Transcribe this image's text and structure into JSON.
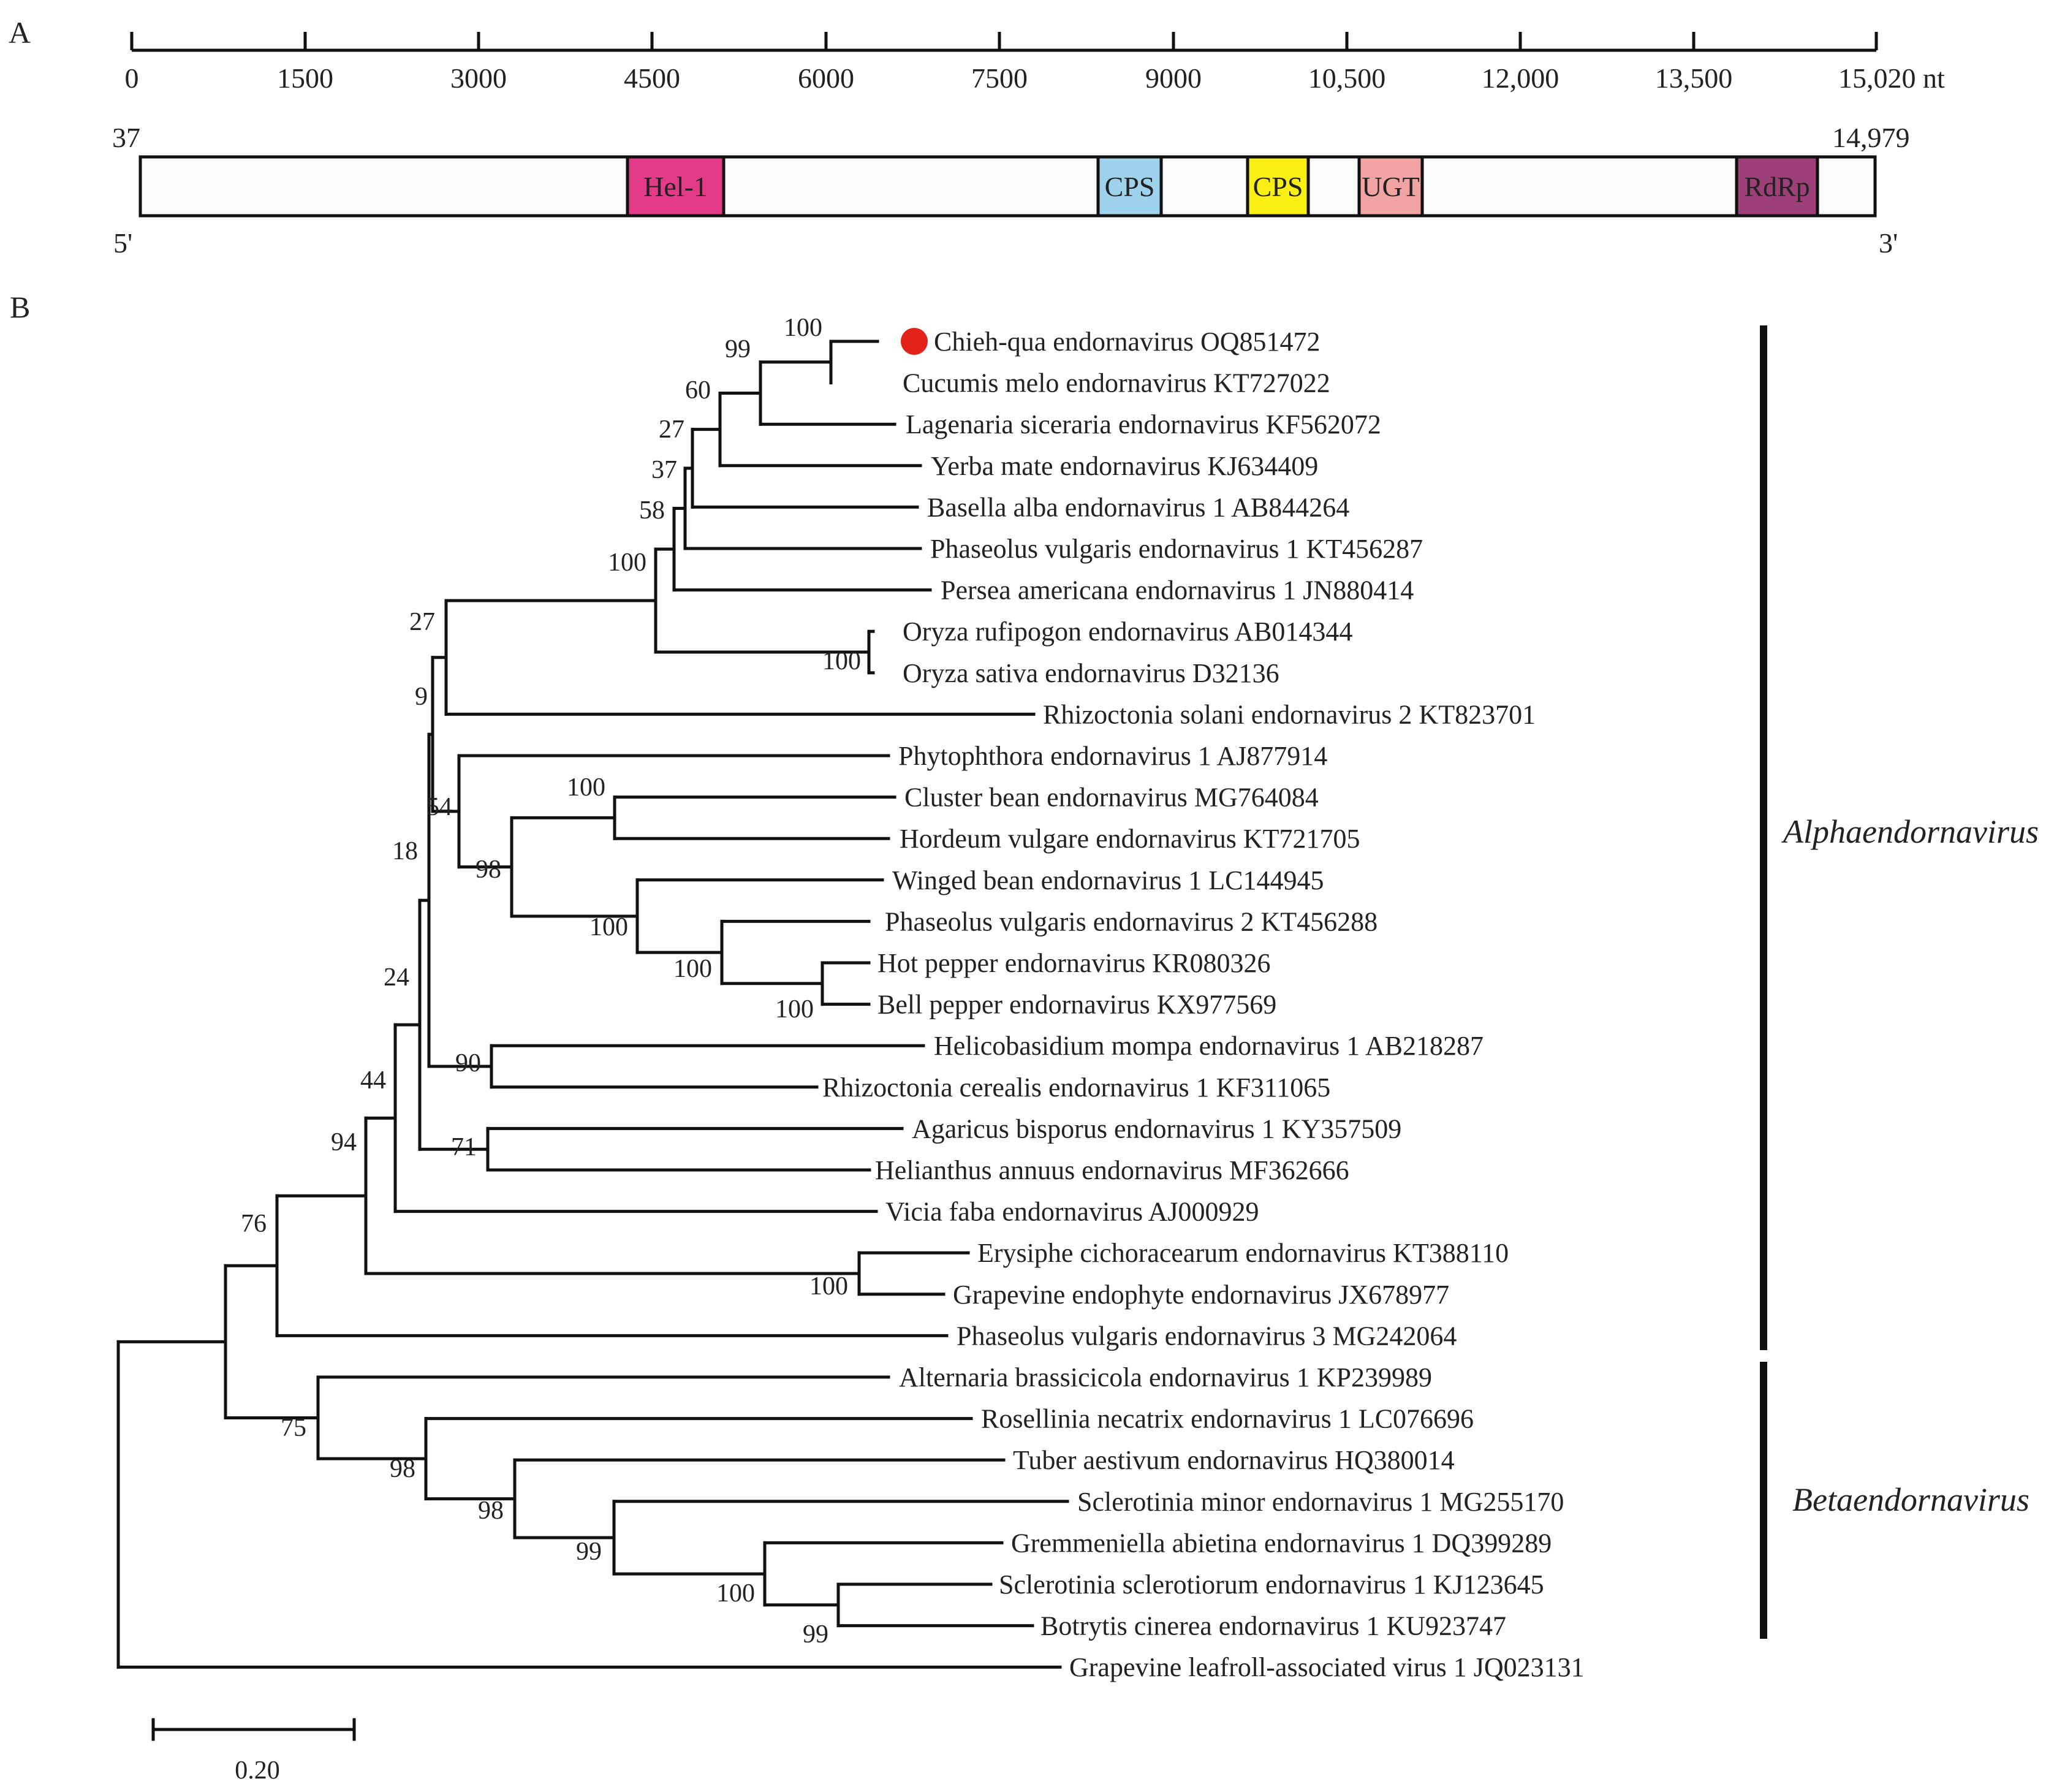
{
  "panels": {
    "a": "A",
    "b": "B"
  },
  "colors": {
    "line": "#111111",
    "text": "#222222",
    "genome_fill": "#fcfcfc",
    "marker": "#e32219"
  },
  "genome": {
    "axis_ticks": [
      "0",
      "1500",
      "3000",
      "4500",
      "6000",
      "7500",
      "9000",
      "10,500",
      "12,000",
      "13,500",
      "15,020 nt"
    ],
    "start_position": "37",
    "end_position": "14,979",
    "five_prime": "5'",
    "three_prime": "3'",
    "domains": [
      {
        "label": "Hel-1",
        "color": "#e43b88"
      },
      {
        "label": "CPS",
        "color": "#9ed2ec"
      },
      {
        "label": "CPS",
        "color": "#f9ef13"
      },
      {
        "label": "UGT",
        "color": "#f2a3a3"
      },
      {
        "label": "RdRp",
        "color": "#9c4077"
      }
    ]
  },
  "tree": {
    "leaves": [
      "Chieh-qua endornavirus OQ851472",
      "Cucumis melo endornavirus KT727022",
      "Lagenaria siceraria endornavirus KF562072",
      "Yerba mate endornavirus KJ634409",
      "Basella alba endornavirus 1 AB844264",
      "Phaseolus vulgaris endornavirus 1 KT456287",
      "Persea americana endornavirus 1 JN880414",
      "Oryza rufipogon endornavirus AB014344",
      "Oryza sativa endornavirus D32136",
      "Rhizoctonia solani endornavirus 2 KT823701",
      "Phytophthora endornavirus 1 AJ877914",
      "Cluster bean endornavirus MG764084",
      "Hordeum vulgare endornavirus KT721705",
      "Winged bean endornavirus 1 LC144945",
      "Phaseolus vulgaris endornavirus 2 KT456288",
      "Hot pepper endornavirus KR080326",
      "Bell pepper endornavirus KX977569",
      "Helicobasidium mompa endornavirus 1 AB218287",
      "Rhizoctonia cerealis endornavirus 1 KF311065",
      "Agaricus bisporus endornavirus 1 KY357509",
      "Helianthus annuus endornavirus MF362666",
      "Vicia faba endornavirus AJ000929",
      "Erysiphe cichoracearum endornavirus KT388110",
      "Grapevine endophyte endornavirus JX678977",
      "Phaseolus vulgaris endornavirus 3 MG242064",
      "Alternaria brassicicola endornavirus 1 KP239989",
      "Rosellinia necatrix endornavirus 1 LC076696",
      "Tuber aestivum endornavirus HQ380014",
      "Sclerotinia minor endornavirus 1 MG255170",
      "Gremmeniella abietina endornavirus 1 DQ399289",
      "Sclerotinia sclerotiorum endornavirus 1 KJ123645",
      "Botrytis cinerea endornavirus 1 KU923747",
      "Grapevine leafroll-associated virus 1 JQ023131"
    ],
    "highlighted_leaf": "Chieh-qua endornavirus OQ851472",
    "support_values": [
      "100",
      "99",
      "60",
      "27",
      "37",
      "58",
      "100",
      "100",
      "27",
      "9",
      "54",
      "100",
      "98",
      "100",
      "100",
      "100",
      "90",
      "18",
      "71",
      "24",
      "44",
      "100",
      "94",
      "76",
      "75",
      "98",
      "98",
      "99",
      "100",
      "99"
    ],
    "clades": [
      "Alphaendornavirus",
      "Betaendornavirus"
    ],
    "scale_bar_label": "0.20"
  }
}
